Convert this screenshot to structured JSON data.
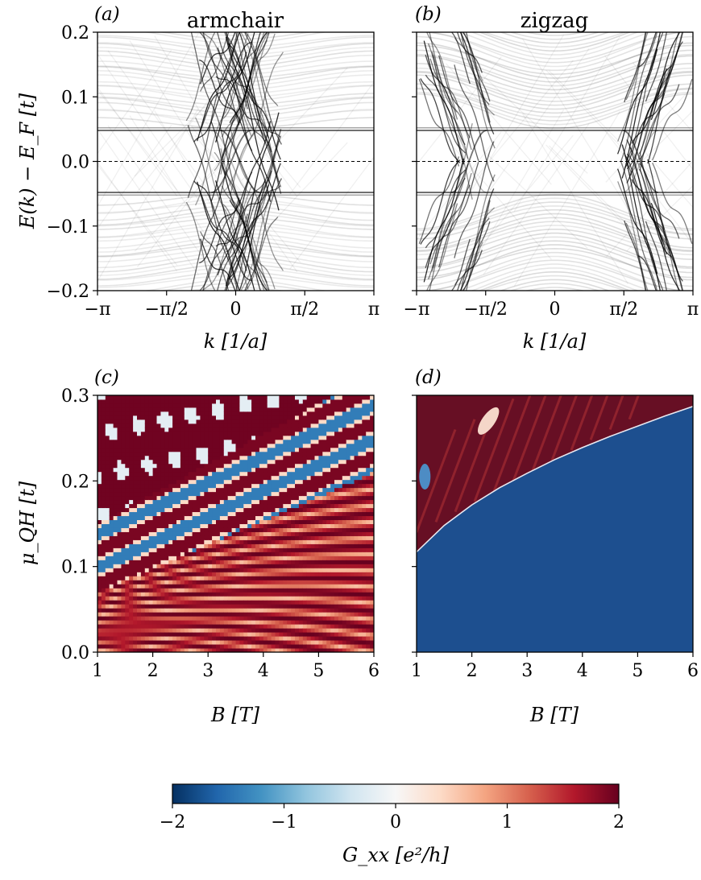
{
  "chart_data": [
    {
      "panel": "(a)",
      "type": "line",
      "title": "armchair",
      "xlabel": "k [1/a]",
      "ylabel": "E(k) − E_F [t]",
      "xlim": [
        -3.14159,
        3.14159
      ],
      "ylim": [
        -0.2,
        0.2
      ],
      "xticks": [
        "−π",
        "−π/2",
        "0",
        "π/2",
        "π"
      ],
      "yticks": [
        "−0.2",
        "−0.1",
        "0.0",
        "0.1",
        "0.2"
      ],
      "fermi_level": 0.0,
      "gap_edges": [
        -0.048,
        0.048
      ],
      "grid": false
    },
    {
      "panel": "(b)",
      "type": "line",
      "title": "zigzag",
      "xlabel": "k [1/a]",
      "xlim": [
        -3.14159,
        3.14159
      ],
      "ylim": [
        -0.2,
        0.2
      ],
      "xticks": [
        "−π",
        "−π/2",
        "0",
        "π/2",
        "π"
      ],
      "fermi_level": 0.0,
      "gap_edges": [
        -0.048,
        0.048
      ],
      "grid": false
    },
    {
      "panel": "(c)",
      "type": "heatmap",
      "xlabel": "B [T]",
      "ylabel": "μ_QH [t]",
      "xlim": [
        1,
        6
      ],
      "ylim": [
        0.0,
        0.3
      ],
      "xticks": [
        "1",
        "2",
        "3",
        "4",
        "5",
        "6"
      ],
      "yticks": [
        "0.0",
        "0.1",
        "0.2",
        "0.3"
      ]
    },
    {
      "panel": "(d)",
      "type": "heatmap",
      "xlabel": "B [T]",
      "xlim": [
        1,
        6
      ],
      "ylim": [
        0.0,
        0.3
      ],
      "xticks": [
        "1",
        "2",
        "3",
        "4",
        "5",
        "6"
      ],
      "boundary": [
        [
          1.0,
          0.117
        ],
        [
          1.5,
          0.148
        ],
        [
          2.0,
          0.172
        ],
        [
          2.5,
          0.192
        ],
        [
          3.0,
          0.209
        ],
        [
          3.5,
          0.225
        ],
        [
          4.0,
          0.239
        ],
        [
          4.5,
          0.252
        ],
        [
          5.0,
          0.264
        ],
        [
          5.5,
          0.276
        ],
        [
          6.0,
          0.287
        ]
      ]
    }
  ],
  "colorbar": {
    "label": "G_xx [e²/h]",
    "range": [
      -2,
      2
    ],
    "ticks": [
      "−2",
      "−1",
      "0",
      "1",
      "2"
    ],
    "colors": [
      "#053061",
      "#2166ac",
      "#4393c3",
      "#92c5de",
      "#d1e5f0",
      "#f7f7f7",
      "#fddbc7",
      "#f4a582",
      "#d6604d",
      "#b2182b",
      "#67001f"
    ]
  }
}
